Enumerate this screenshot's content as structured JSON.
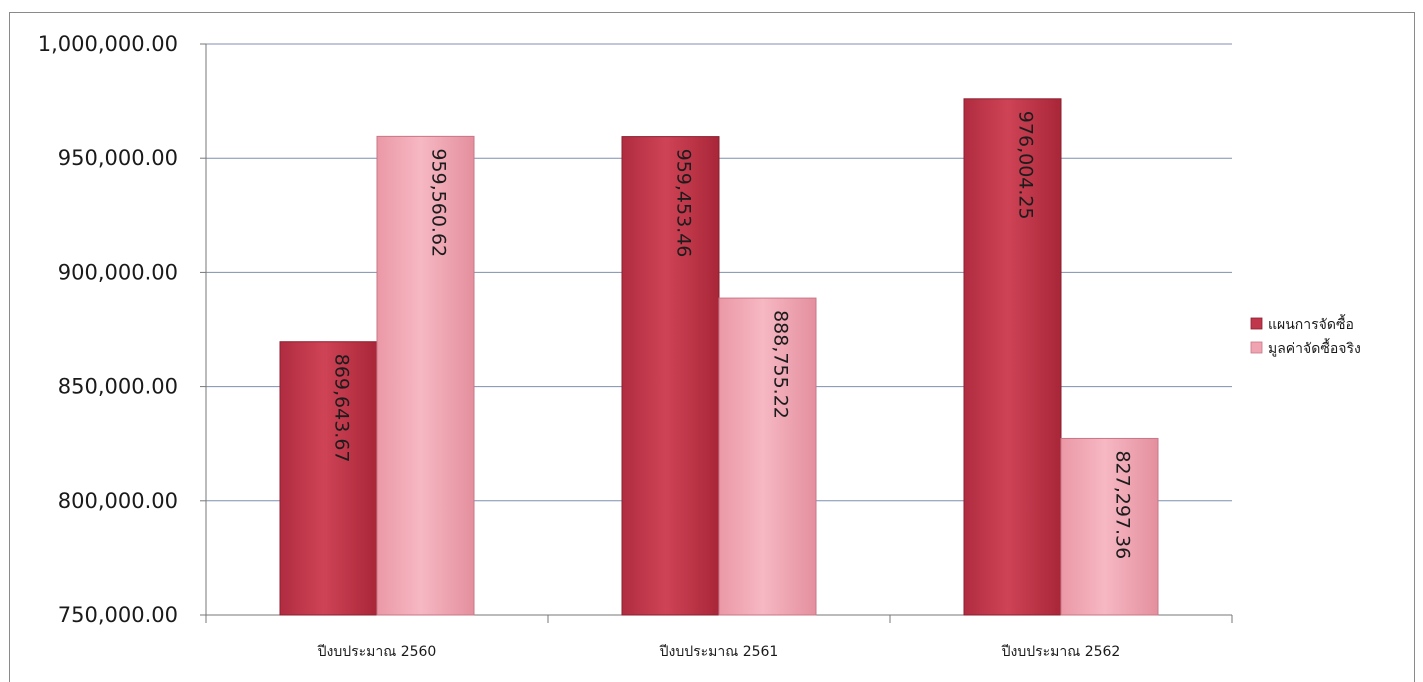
{
  "chart_data": {
    "type": "bar",
    "title": "",
    "xlabel": "",
    "ylabel": "",
    "categories": [
      "ปีงบประมาณ 2560",
      "ปีงบประมาณ 2561",
      "ปีงบประมาณ 2562"
    ],
    "series": [
      {
        "name": "แผนการจัดซื้อ",
        "values": [
          869643.67,
          959453.46,
          976004.25
        ],
        "labels": [
          "869,643.67",
          "959,453.46",
          "976,004.25"
        ],
        "color": "#c0364a"
      },
      {
        "name": "มูลค่าจัดซื้อจริง",
        "values": [
          959560.62,
          888755.22,
          827297.36
        ],
        "labels": [
          "959,560.62",
          "888,755.22",
          "827,297.36"
        ],
        "color": "#f0a3b0"
      }
    ],
    "ylim": [
      750000,
      1000000
    ],
    "yticks": [
      750000,
      800000,
      850000,
      900000,
      950000,
      1000000
    ],
    "ytick_labels": [
      "750,000.00",
      "800,000.00",
      "850,000.00",
      "900,000.00",
      "950,000.00",
      "1,000,000.00"
    ],
    "grid": true,
    "legend_position": "right",
    "data_label_orientation": "vertical"
  }
}
